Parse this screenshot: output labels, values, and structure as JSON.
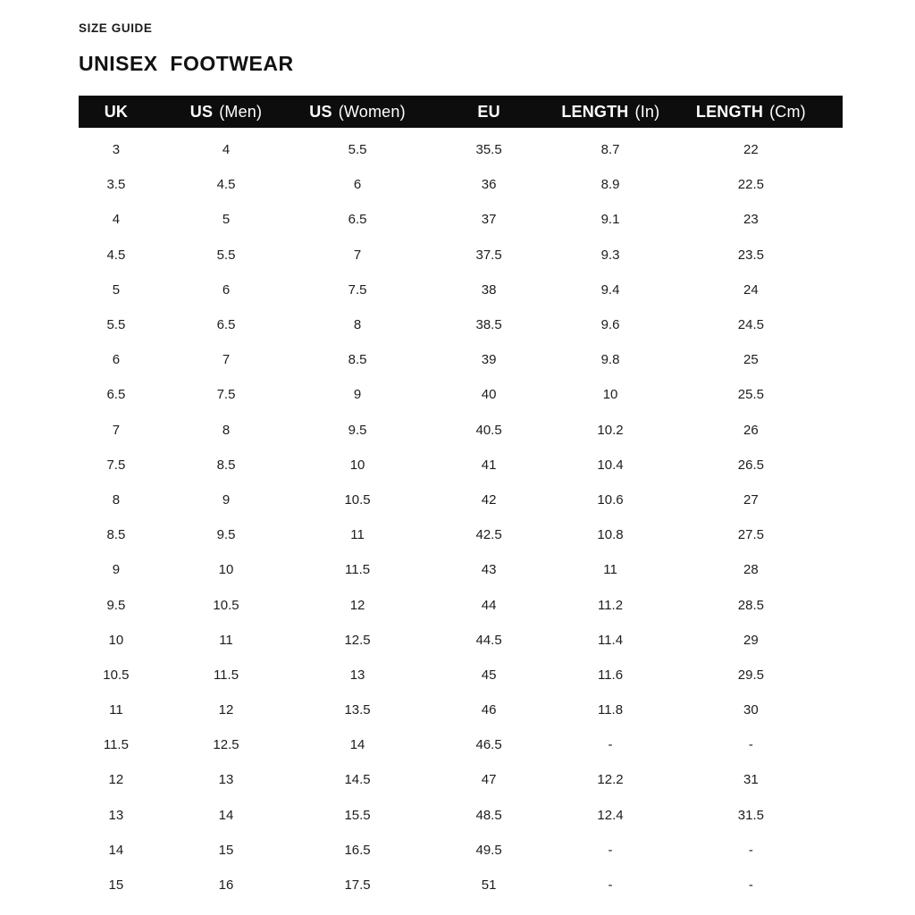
{
  "header": {
    "eyebrow": "SIZE GUIDE",
    "title": "UNISEX  FOOTWEAR"
  },
  "colors": {
    "background": "#ffffff",
    "header_background": "#0d0d0d",
    "header_text": "#ffffff",
    "body_text": "#1d1d1d"
  },
  "table": {
    "columns": [
      {
        "label": "UK",
        "qualifier": ""
      },
      {
        "label": "US",
        "qualifier": "(Men)"
      },
      {
        "label": "US",
        "qualifier": "(Women)"
      },
      {
        "label": "EU",
        "qualifier": ""
      },
      {
        "label": "LENGTH",
        "qualifier": "(In)"
      },
      {
        "label": "LENGTH",
        "qualifier": "(Cm)"
      }
    ],
    "rows": [
      [
        "3",
        "4",
        "5.5",
        "35.5",
        "8.7",
        "22"
      ],
      [
        "3.5",
        "4.5",
        "6",
        "36",
        "8.9",
        "22.5"
      ],
      [
        "4",
        "5",
        "6.5",
        "37",
        "9.1",
        "23"
      ],
      [
        "4.5",
        "5.5",
        "7",
        "37.5",
        "9.3",
        "23.5"
      ],
      [
        "5",
        "6",
        "7.5",
        "38",
        "9.4",
        "24"
      ],
      [
        "5.5",
        "6.5",
        "8",
        "38.5",
        "9.6",
        "24.5"
      ],
      [
        "6",
        "7",
        "8.5",
        "39",
        "9.8",
        "25"
      ],
      [
        "6.5",
        "7.5",
        "9",
        "40",
        "10",
        "25.5"
      ],
      [
        "7",
        "8",
        "9.5",
        "40.5",
        "10.2",
        "26"
      ],
      [
        "7.5",
        "8.5",
        "10",
        "41",
        "10.4",
        "26.5"
      ],
      [
        "8",
        "9",
        "10.5",
        "42",
        "10.6",
        "27"
      ],
      [
        "8.5",
        "9.5",
        "11",
        "42.5",
        "10.8",
        "27.5"
      ],
      [
        "9",
        "10",
        "11.5",
        "43",
        "11",
        "28"
      ],
      [
        "9.5",
        "10.5",
        "12",
        "44",
        "11.2",
        "28.5"
      ],
      [
        "10",
        "11",
        "12.5",
        "44.5",
        "11.4",
        "29"
      ],
      [
        "10.5",
        "11.5",
        "13",
        "45",
        "11.6",
        "29.5"
      ],
      [
        "11",
        "12",
        "13.5",
        "46",
        "11.8",
        "30"
      ],
      [
        "11.5",
        "12.5",
        "14",
        "46.5",
        "-",
        "-"
      ],
      [
        "12",
        "13",
        "14.5",
        "47",
        "12.2",
        "31"
      ],
      [
        "13",
        "14",
        "15.5",
        "48.5",
        "12.4",
        "31.5"
      ],
      [
        "14",
        "15",
        "16.5",
        "49.5",
        "-",
        "-"
      ],
      [
        "15",
        "16",
        "17.5",
        "51",
        "-",
        "-"
      ]
    ]
  }
}
